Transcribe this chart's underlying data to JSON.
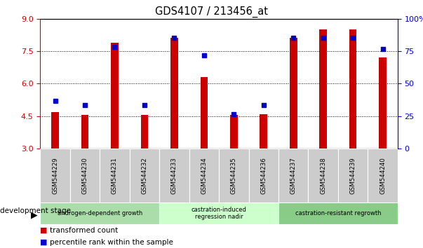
{
  "title": "GDS4107 / 213456_at",
  "samples": [
    "GSM544229",
    "GSM544230",
    "GSM544231",
    "GSM544232",
    "GSM544233",
    "GSM544234",
    "GSM544235",
    "GSM544236",
    "GSM544237",
    "GSM544238",
    "GSM544239",
    "GSM544240"
  ],
  "red_values": [
    4.7,
    4.55,
    7.9,
    4.55,
    8.1,
    6.3,
    4.55,
    4.6,
    8.1,
    8.5,
    8.5,
    7.2
  ],
  "blue_values": [
    5.2,
    5.0,
    7.7,
    5.0,
    8.1,
    7.3,
    4.6,
    5.0,
    8.1,
    8.1,
    8.1,
    7.6
  ],
  "ylim_left": [
    3,
    9
  ],
  "ylim_right": [
    0,
    100
  ],
  "yticks_left": [
    3,
    4.5,
    6,
    7.5,
    9
  ],
  "yticks_right": [
    0,
    25,
    50,
    75,
    100
  ],
  "bar_bottom": 3,
  "bar_color": "#cc0000",
  "dot_color": "#0000cc",
  "stage_groups": [
    {
      "label": "androgen-dependent growth",
      "start": 0,
      "end": 3,
      "color": "#aaddaa"
    },
    {
      "label": "castration-induced\nregression nadir",
      "start": 4,
      "end": 7,
      "color": "#ccffcc"
    },
    {
      "label": "castration-resistant regrowth",
      "start": 8,
      "end": 11,
      "color": "#88cc88"
    }
  ],
  "legend_items": [
    {
      "color": "#cc0000",
      "label": "transformed count"
    },
    {
      "color": "#0000cc",
      "label": "percentile rank within the sample"
    }
  ],
  "dev_stage_label": "development stage",
  "axis_color_left": "#cc0000",
  "axis_color_right": "#0000cc",
  "sample_box_color": "#cccccc",
  "bar_width": 0.25
}
